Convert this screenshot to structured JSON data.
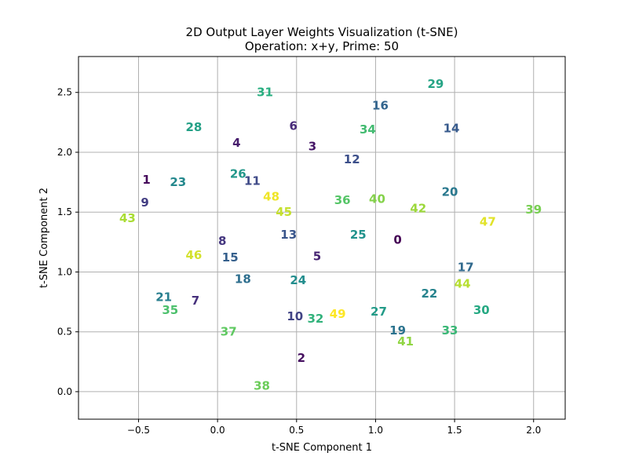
{
  "chart_data": {
    "type": "scatter",
    "title": "2D Output Layer Weights Visualization (t-SNE)",
    "subtitle": "Operation: x+y, Prime: 50",
    "xlabel": "t-SNE Component 1",
    "ylabel": "t-SNE Component 2",
    "xlim": [
      -0.88,
      2.2
    ],
    "ylim": [
      -0.23,
      2.8
    ],
    "xticks": [
      -0.5,
      0.0,
      0.5,
      1.0,
      1.5,
      2.0
    ],
    "xtick_labels": [
      "−0.5",
      "0.0",
      "0.5",
      "1.0",
      "1.5",
      "2.0"
    ],
    "yticks": [
      0.0,
      0.5,
      1.0,
      1.5,
      2.0,
      2.5
    ],
    "ytick_labels": [
      "0.0",
      "0.5",
      "1.0",
      "1.5",
      "2.0",
      "2.5"
    ],
    "grid": true,
    "colormap": "viridis",
    "points": [
      {
        "label": "0",
        "x": 1.14,
        "y": 1.27
      },
      {
        "label": "1",
        "x": -0.45,
        "y": 1.77
      },
      {
        "label": "2",
        "x": 0.53,
        "y": 0.28
      },
      {
        "label": "3",
        "x": 0.6,
        "y": 2.05
      },
      {
        "label": "4",
        "x": 0.12,
        "y": 2.08
      },
      {
        "label": "5",
        "x": 0.63,
        "y": 1.13
      },
      {
        "label": "6",
        "x": 0.48,
        "y": 2.22
      },
      {
        "label": "7",
        "x": -0.14,
        "y": 0.76
      },
      {
        "label": "8",
        "x": 0.03,
        "y": 1.26
      },
      {
        "label": "9",
        "x": -0.46,
        "y": 1.58
      },
      {
        "label": "10",
        "x": 0.49,
        "y": 0.63
      },
      {
        "label": "11",
        "x": 0.22,
        "y": 1.76
      },
      {
        "label": "12",
        "x": 0.85,
        "y": 1.94
      },
      {
        "label": "13",
        "x": 0.45,
        "y": 1.31
      },
      {
        "label": "14",
        "x": 1.48,
        "y": 2.2
      },
      {
        "label": "15",
        "x": 0.08,
        "y": 1.12
      },
      {
        "label": "16",
        "x": 1.03,
        "y": 2.39
      },
      {
        "label": "17",
        "x": 1.57,
        "y": 1.04
      },
      {
        "label": "18",
        "x": 0.16,
        "y": 0.94
      },
      {
        "label": "19",
        "x": 1.14,
        "y": 0.51
      },
      {
        "label": "20",
        "x": 1.47,
        "y": 1.67
      },
      {
        "label": "21",
        "x": -0.34,
        "y": 0.79
      },
      {
        "label": "22",
        "x": 1.34,
        "y": 0.82
      },
      {
        "label": "23",
        "x": -0.25,
        "y": 1.75
      },
      {
        "label": "24",
        "x": 0.51,
        "y": 0.93
      },
      {
        "label": "25",
        "x": 0.89,
        "y": 1.31
      },
      {
        "label": "26",
        "x": 0.13,
        "y": 1.82
      },
      {
        "label": "27",
        "x": 1.02,
        "y": 0.67
      },
      {
        "label": "28",
        "x": -0.15,
        "y": 2.21
      },
      {
        "label": "29",
        "x": 1.38,
        "y": 2.57
      },
      {
        "label": "30",
        "x": 1.67,
        "y": 0.68
      },
      {
        "label": "31",
        "x": 0.3,
        "y": 2.5
      },
      {
        "label": "32",
        "x": 0.62,
        "y": 0.61
      },
      {
        "label": "33",
        "x": 1.47,
        "y": 0.51
      },
      {
        "label": "34",
        "x": 0.95,
        "y": 2.19
      },
      {
        "label": "35",
        "x": -0.3,
        "y": 0.68
      },
      {
        "label": "36",
        "x": 0.79,
        "y": 1.6
      },
      {
        "label": "37",
        "x": 0.07,
        "y": 0.5
      },
      {
        "label": "38",
        "x": 0.28,
        "y": 0.05
      },
      {
        "label": "39",
        "x": 2.0,
        "y": 1.52
      },
      {
        "label": "40",
        "x": 1.01,
        "y": 1.61
      },
      {
        "label": "41",
        "x": 1.19,
        "y": 0.42
      },
      {
        "label": "42",
        "x": 1.27,
        "y": 1.53
      },
      {
        "label": "43",
        "x": -0.57,
        "y": 1.45
      },
      {
        "label": "44",
        "x": 1.55,
        "y": 0.9
      },
      {
        "label": "45",
        "x": 0.42,
        "y": 1.5
      },
      {
        "label": "46",
        "x": -0.15,
        "y": 1.14
      },
      {
        "label": "47",
        "x": 1.71,
        "y": 1.42
      },
      {
        "label": "48",
        "x": 0.34,
        "y": 1.63
      },
      {
        "label": "49",
        "x": 0.76,
        "y": 0.65
      }
    ]
  }
}
